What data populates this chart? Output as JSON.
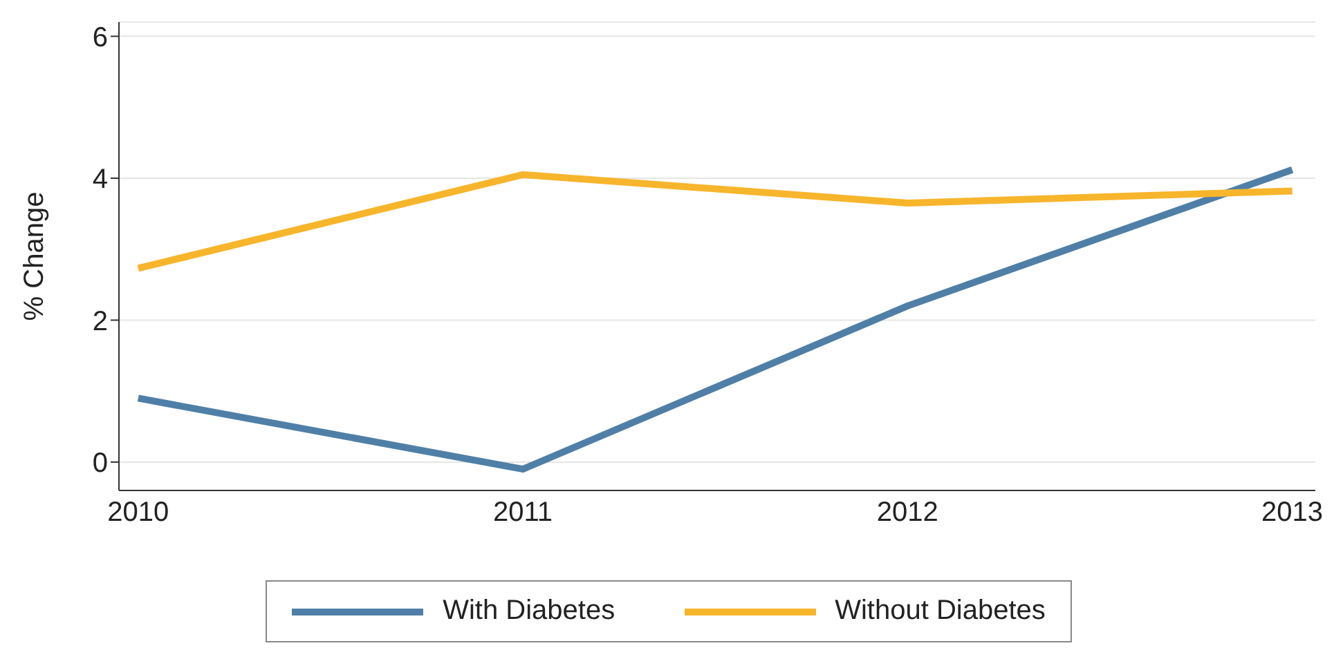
{
  "chart_data": {
    "type": "line",
    "ylabel": "% Change",
    "x": [
      2010,
      2011,
      2012,
      2013
    ],
    "xlim": [
      2009.95,
      2013.06
    ],
    "xticks": [
      2010,
      2011,
      2012,
      2013
    ],
    "ylim": [
      -0.4,
      6.2
    ],
    "yticks": [
      0,
      2,
      4,
      6
    ],
    "grid": "y",
    "legend": "bottom",
    "marker": "none",
    "line_style": "solid",
    "series": [
      {
        "name": "With Diabetes",
        "color": "#4f7fa6",
        "values": [
          0.9,
          -0.1,
          2.2,
          4.12
        ]
      },
      {
        "name": "Without Diabetes",
        "color": "#f7b52c",
        "values": [
          2.73,
          4.05,
          3.65,
          3.82
        ]
      }
    ]
  }
}
